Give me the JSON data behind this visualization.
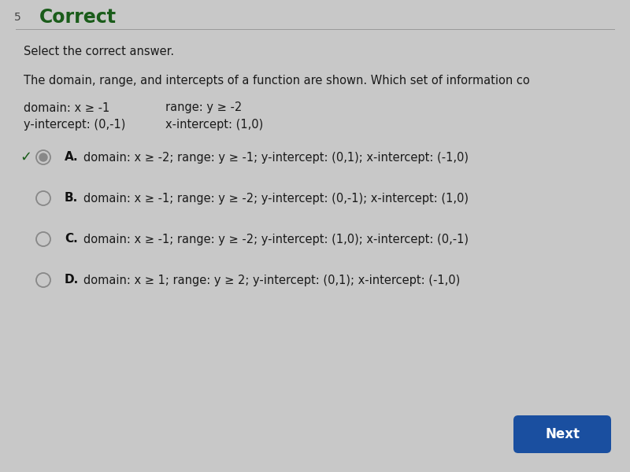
{
  "question_number": "5",
  "header": "Correct",
  "subheader": "Select the correct answer.",
  "question_text": "The domain, range, and intercepts of a function are shown. Which set of information co",
  "given_domain": "domain: x ≥ -1",
  "given_range": "range: y ≥ -2",
  "given_yintercept": "y-intercept: (0,-1)",
  "given_xintercept": "x-intercept: (1,0)",
  "options": [
    {
      "letter": "A.",
      "text": "domain: x ≥ -2; range: y ≥ -1; y-intercept: (0,1); x-intercept: (-1,0)",
      "selected": true
    },
    {
      "letter": "B.",
      "text": "domain: x ≥ -1; range: y ≥ -2; y-intercept: (0,-1); x-intercept: (1,0)",
      "selected": false
    },
    {
      "letter": "C.",
      "text": "domain: x ≥ -1; range: y ≥ -2; y-intercept: (1,0); x-intercept: (0,-1)",
      "selected": false
    },
    {
      "letter": "D.",
      "text": "domain: x ≥ 1; range: y ≥ 2; y-intercept: (0,1); x-intercept: (-1,0)",
      "selected": false
    }
  ],
  "bg_color": "#c8c8c8",
  "header_color": "#1a5c1a",
  "question_number_color": "#444444",
  "text_color": "#1a1a1a",
  "option_letter_color": "#111111",
  "circle_edge_color": "#888888",
  "selected_fill_color": "#888888",
  "check_color": "#1a5c1a",
  "next_button_color": "#1a4fa0",
  "next_button_text": "Next",
  "separator_color": "#999999",
  "figw": 8.0,
  "figh": 6.0,
  "dpi": 100
}
